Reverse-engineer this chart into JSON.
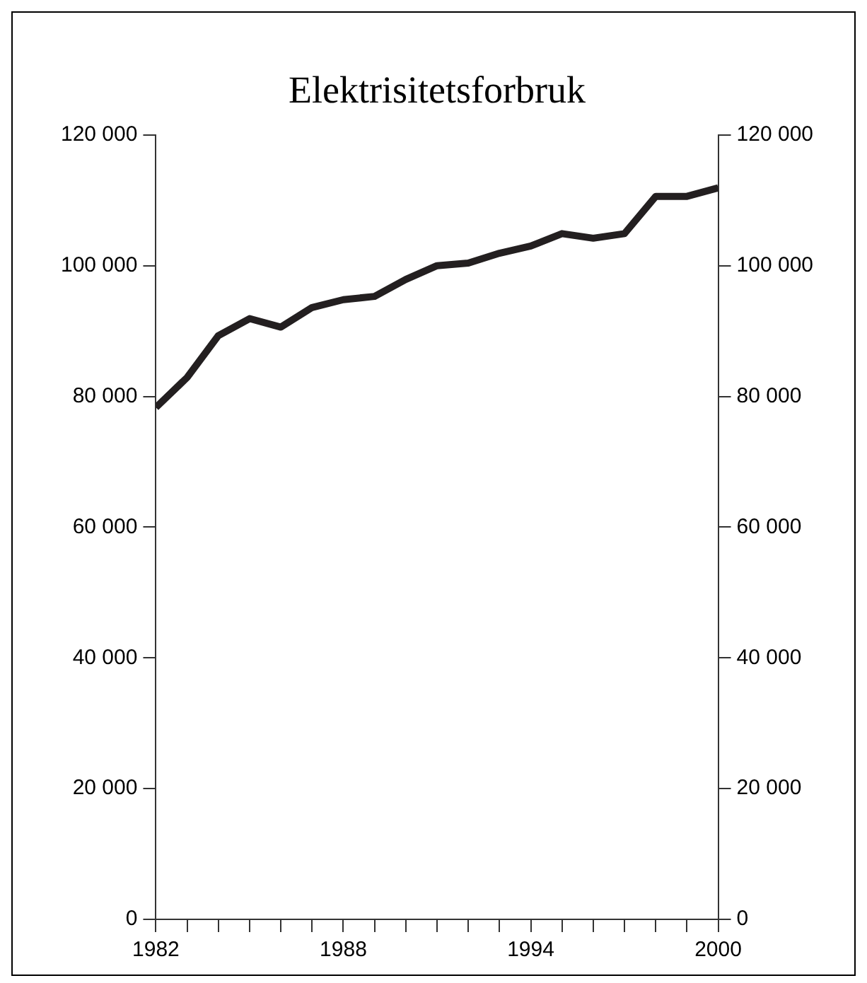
{
  "chart_data": {
    "type": "line",
    "title": "Elektrisitetsforbruk",
    "x": [
      1982,
      1983,
      1984,
      1985,
      1986,
      1987,
      1988,
      1989,
      1990,
      1991,
      1992,
      1993,
      1994,
      1995,
      1996,
      1997,
      1998,
      1999,
      2000
    ],
    "series": [
      {
        "color": "#231f20",
        "values": [
          78300,
          82900,
          89300,
          91900,
          90600,
          93600,
          94800,
          95300,
          97900,
          100000,
          100400,
          101900,
          103000,
          104900,
          104200,
          104900,
          110600,
          110600,
          111900
        ]
      }
    ],
    "xlim": [
      1982,
      2000
    ],
    "xticks": [
      1982,
      {
        "value": 1983,
        "label": null
      },
      {
        "value": 1984,
        "label": null
      },
      {
        "value": 1985,
        "label": null
      },
      {
        "value": 1986,
        "label": null
      },
      {
        "value": 1987,
        "label": null
      },
      1988,
      {
        "value": 1989,
        "label": null
      },
      {
        "value": 1990,
        "label": null
      },
      {
        "value": 1991,
        "label": null
      },
      {
        "value": 1992,
        "label": null
      },
      {
        "value": 1993,
        "label": null
      },
      1994,
      {
        "value": 1995,
        "label": null
      },
      {
        "value": 1996,
        "label": null
      },
      {
        "value": 1997,
        "label": null
      },
      {
        "value": 1998,
        "label": null
      },
      {
        "value": 1999,
        "label": null
      },
      2000
    ],
    "ylim": [
      0,
      120000
    ],
    "yticks": [
      0,
      {
        "value": 20000,
        "label": "20 000"
      },
      {
        "value": 40000,
        "label": "40 000"
      },
      {
        "value": 60000,
        "label": "60 000"
      },
      {
        "value": 80000,
        "label": "80 000"
      },
      {
        "value": 100000,
        "label": "100 000"
      },
      {
        "value": 120000,
        "label": "120 000"
      }
    ],
    "y2lim": [
      0,
      120000
    ],
    "y2ticks": [
      0,
      {
        "value": 20000,
        "label": "20 000"
      },
      {
        "value": 40000,
        "label": "40 000"
      },
      {
        "value": 60000,
        "label": "60 000"
      },
      {
        "value": 80000,
        "label": "80 000"
      },
      {
        "value": 100000,
        "label": "100 000"
      },
      {
        "value": 120000,
        "label": "120 000"
      }
    ],
    "marker": "none",
    "line_style": "solid"
  }
}
